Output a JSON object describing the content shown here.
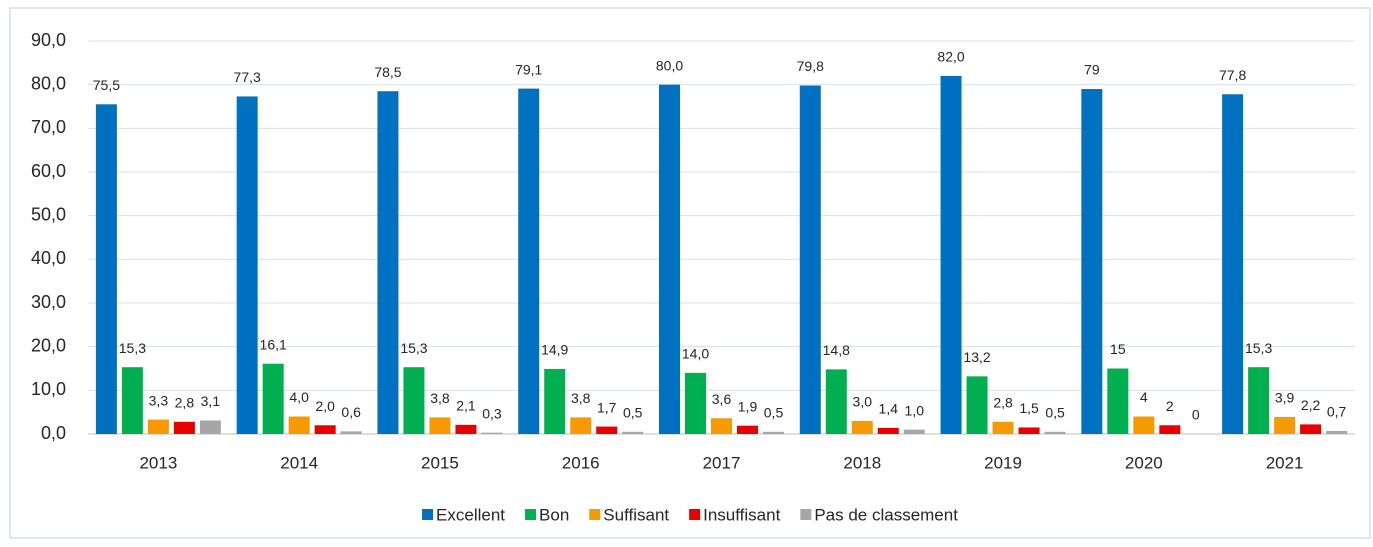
{
  "chart_data": {
    "type": "bar",
    "categories": [
      "2013",
      "2014",
      "2015",
      "2016",
      "2017",
      "2018",
      "2019",
      "2020",
      "2021"
    ],
    "series": [
      {
        "name": "Excellent",
        "color": "#0070c0",
        "values": [
          75.5,
          77.3,
          78.5,
          79.1,
          80.0,
          79.8,
          82.0,
          79,
          77.8
        ],
        "value_labels": [
          "75,5",
          "77,3",
          "78,5",
          "79,1",
          "80,0",
          "79,8",
          "82,0",
          "79",
          "77,8"
        ]
      },
      {
        "name": "Bon",
        "color": "#00b050",
        "values": [
          15.3,
          16.1,
          15.3,
          14.9,
          14.0,
          14.8,
          13.2,
          15,
          15.3
        ],
        "value_labels": [
          "15,3",
          "16,1",
          "15,3",
          "14,9",
          "14,0",
          "14,8",
          "13,2",
          "15",
          "15,3"
        ]
      },
      {
        "name": "Suffisant",
        "color": "#f79a00",
        "values": [
          3.3,
          4.0,
          3.8,
          3.8,
          3.6,
          3.0,
          2.8,
          4,
          3.9
        ],
        "value_labels": [
          "3,3",
          "4,0",
          "3,8",
          "3,8",
          "3,6",
          "3,0",
          "2,8",
          "4",
          "3,9"
        ]
      },
      {
        "name": "Insuffisant",
        "color": "#e80000",
        "values": [
          2.8,
          2.0,
          2.1,
          1.7,
          1.9,
          1.4,
          1.5,
          2,
          2.2
        ],
        "value_labels": [
          "2,8",
          "2,0",
          "2,1",
          "1,7",
          "1,9",
          "1,4",
          "1,5",
          "2",
          "2,2"
        ]
      },
      {
        "name": "Pas de classement",
        "color": "#a6a6a6",
        "values": [
          3.1,
          0.6,
          0.3,
          0.5,
          0.5,
          1.0,
          0.5,
          0,
          0.7
        ],
        "value_labels": [
          "3,1",
          "0,6",
          "0,3",
          "0,5",
          "0,5",
          "1,0",
          "0,5",
          "0",
          "0,7"
        ]
      }
    ],
    "ylim": [
      0,
      90
    ],
    "yticks": [
      {
        "value": 0,
        "label": "0,0"
      },
      {
        "value": 10,
        "label": "10,0"
      },
      {
        "value": 20,
        "label": "20,0"
      },
      {
        "value": 30,
        "label": "30,0"
      },
      {
        "value": 40,
        "label": "40,0"
      },
      {
        "value": 50,
        "label": "50,0"
      },
      {
        "value": 60,
        "label": "60,0"
      },
      {
        "value": 70,
        "label": "70,0"
      },
      {
        "value": 80,
        "label": "80,0"
      },
      {
        "value": 90,
        "label": "90,0"
      }
    ],
    "grid": true,
    "legend": "bottom"
  }
}
